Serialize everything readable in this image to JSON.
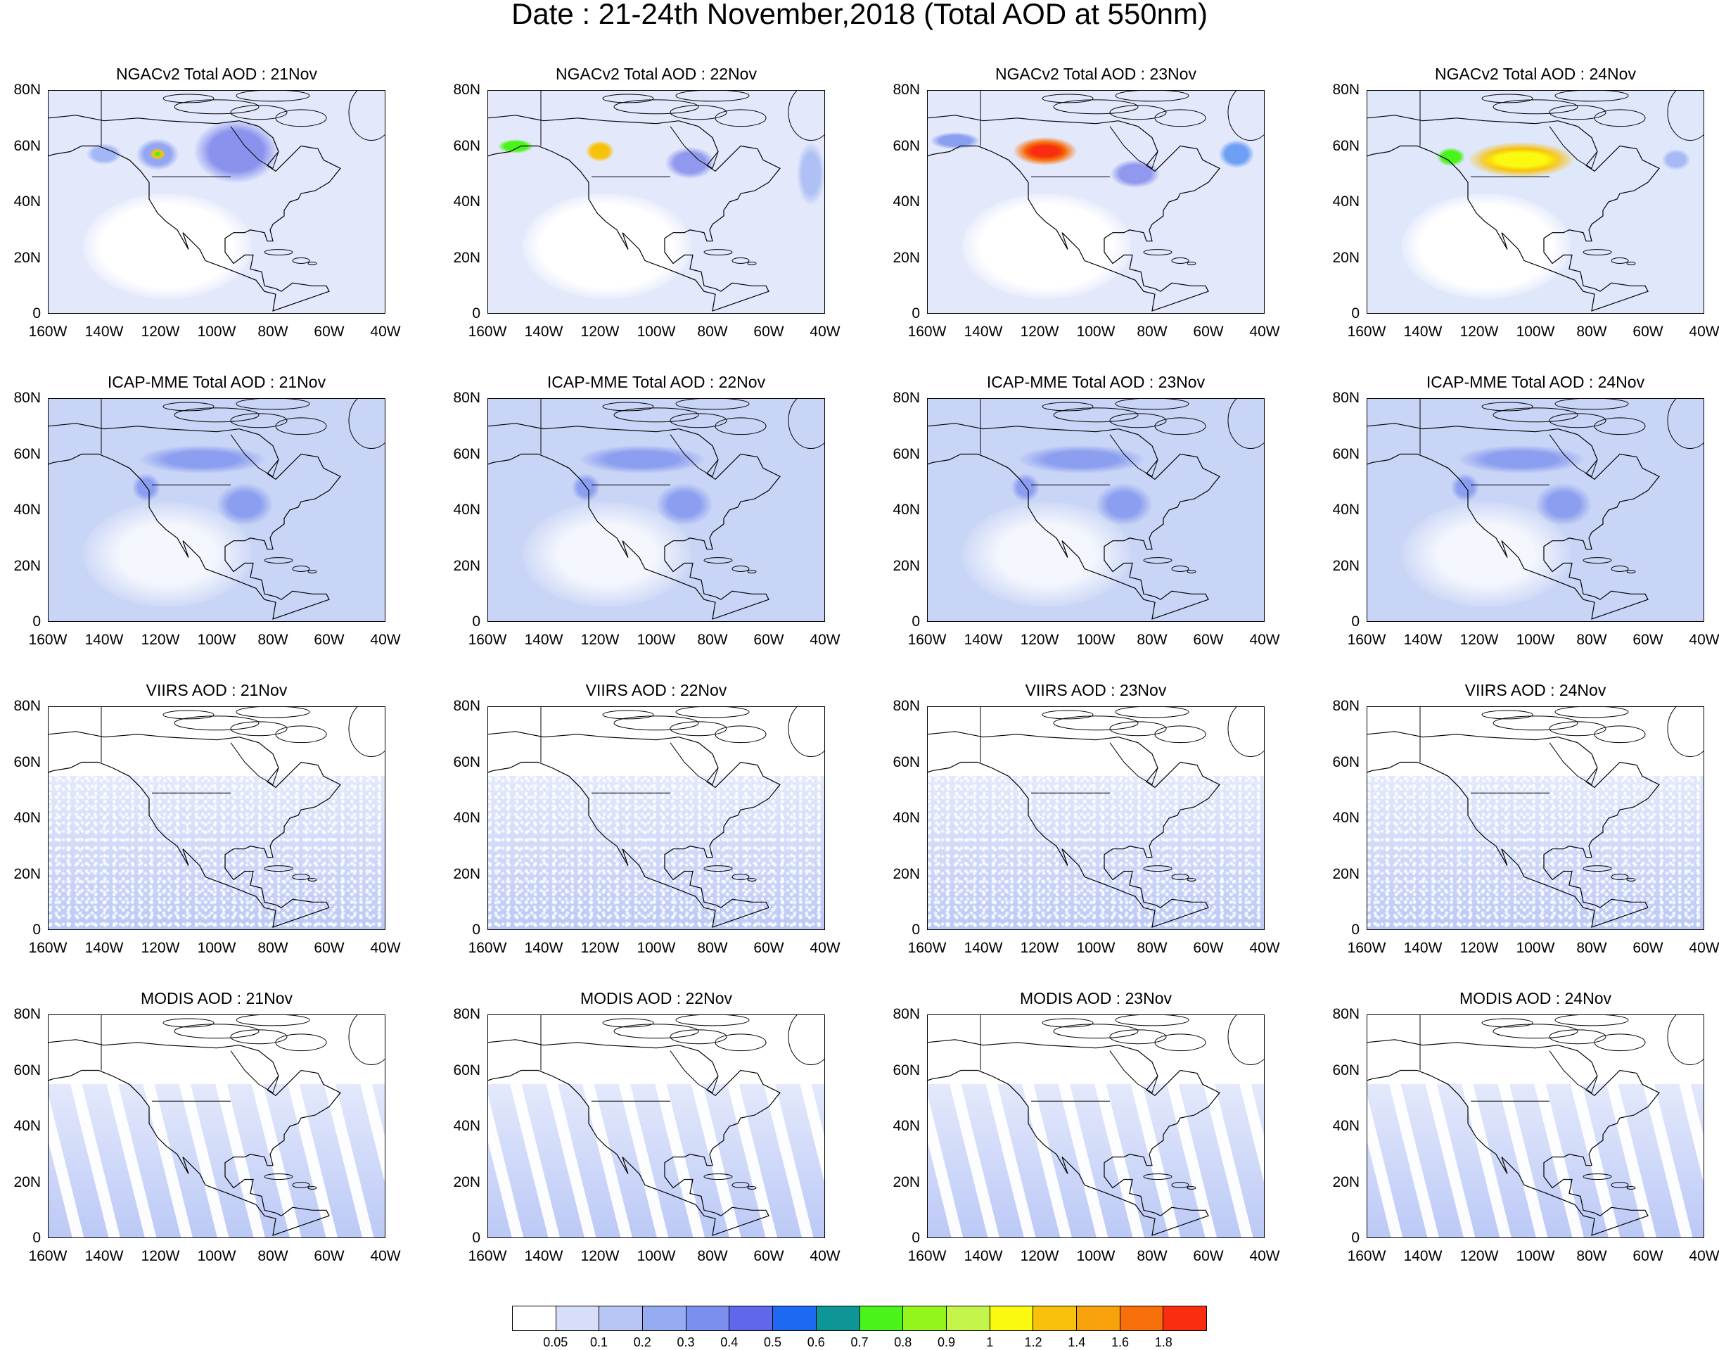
{
  "title": "Date : 21-24th November,2018 (Total AOD at 550nm)",
  "axes": {
    "y_ticks": [
      "80N",
      "60N",
      "40N",
      "20N",
      "0"
    ],
    "x_ticks": [
      "160W",
      "140W",
      "120W",
      "100W",
      "80W",
      "60W",
      "40W"
    ],
    "lon_range": [
      -160,
      -40
    ],
    "lat_range": [
      0,
      80
    ]
  },
  "rows": [
    {
      "product": "NGACv2",
      "panels": [
        {
          "title": "NGACv2 Total AOD : 21Nov",
          "bg": "#e3e9fb",
          "stripes": false
        },
        {
          "title": "NGACv2 Total AOD : 22Nov",
          "bg": "#e3e9fb",
          "stripes": false
        },
        {
          "title": "NGACv2 Total AOD : 23Nov",
          "bg": "#e3e9fb",
          "stripes": false
        },
        {
          "title": "NGACv2 Total AOD : 24Nov",
          "bg": "#dfe7fb",
          "stripes": false
        }
      ]
    },
    {
      "product": "ICAP-MME",
      "panels": [
        {
          "title": "ICAP-MME Total AOD : 21Nov",
          "bg": "#c9d5f6",
          "stripes": false
        },
        {
          "title": "ICAP-MME Total AOD : 22Nov",
          "bg": "#c9d5f6",
          "stripes": false
        },
        {
          "title": "ICAP-MME Total AOD : 23Nov",
          "bg": "#c9d5f6",
          "stripes": false
        },
        {
          "title": "ICAP-MME Total AOD : 24Nov",
          "bg": "#c9d5f6",
          "stripes": false
        }
      ]
    },
    {
      "product": "VIIRS",
      "panels": [
        {
          "title": "VIIRS AOD : 21Nov",
          "bg": "#ffffff",
          "stripes": false
        },
        {
          "title": "VIIRS AOD : 22Nov",
          "bg": "#ffffff",
          "stripes": false
        },
        {
          "title": "VIIRS AOD : 23Nov",
          "bg": "#ffffff",
          "stripes": false
        },
        {
          "title": "VIIRS AOD : 24Nov",
          "bg": "#ffffff",
          "stripes": false
        }
      ]
    },
    {
      "product": "MODIS",
      "panels": [
        {
          "title": "MODIS AOD : 21Nov",
          "bg": "#ffffff",
          "stripes": true
        },
        {
          "title": "MODIS AOD : 22Nov",
          "bg": "#ffffff",
          "stripes": true
        },
        {
          "title": "MODIS AOD : 23Nov",
          "bg": "#ffffff",
          "stripes": true
        },
        {
          "title": "MODIS AOD : 24Nov",
          "bg": "#ffffff",
          "stripes": true
        }
      ]
    }
  ],
  "colorbar": {
    "colors": [
      "#ffffff",
      "#d6defa",
      "#b7c6f5",
      "#96acf1",
      "#7a8fee",
      "#6067ea",
      "#1d69f2",
      "#0e9596",
      "#49f41b",
      "#94f51d",
      "#c4f54b",
      "#fafa11",
      "#f8c10c",
      "#f7a20a",
      "#f76f0b",
      "#f92e10"
    ],
    "labels": [
      "0.05",
      "0.1",
      "0.2",
      "0.3",
      "0.4",
      "0.5",
      "0.6",
      "0.7",
      "0.8",
      "0.9",
      "1",
      "1.2",
      "1.4",
      "1.6",
      "1.8"
    ]
  }
}
